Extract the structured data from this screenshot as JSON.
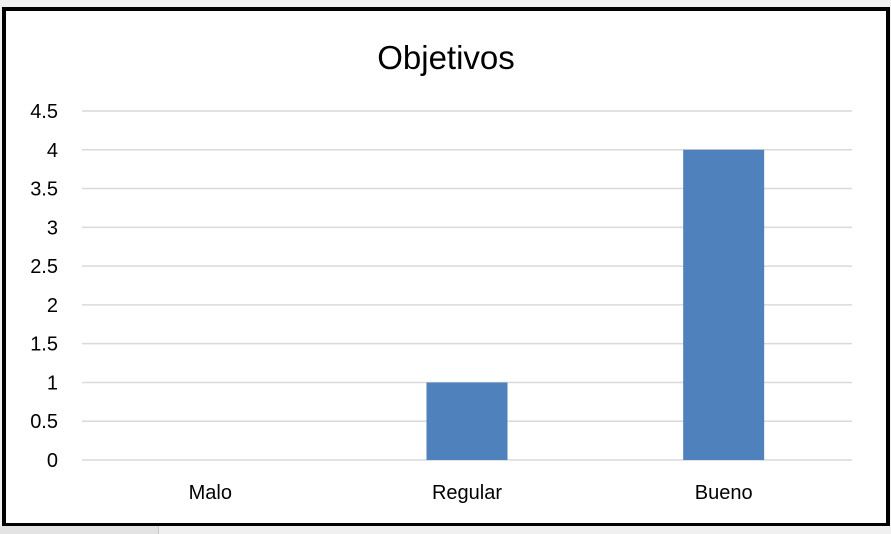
{
  "chart_data": {
    "type": "bar",
    "title": "Objetivos",
    "categories": [
      "Malo",
      "Regular",
      "Bueno"
    ],
    "values": [
      0,
      1,
      4
    ],
    "ylim": [
      0,
      4.5
    ],
    "yticks": [
      "0",
      "0.5",
      "1",
      "1.5",
      "2",
      "2.5",
      "3",
      "3.5",
      "4",
      "4.5"
    ],
    "grid": true,
    "bar_color": "#4f81bd",
    "grid_color": "#d9d9d9"
  }
}
